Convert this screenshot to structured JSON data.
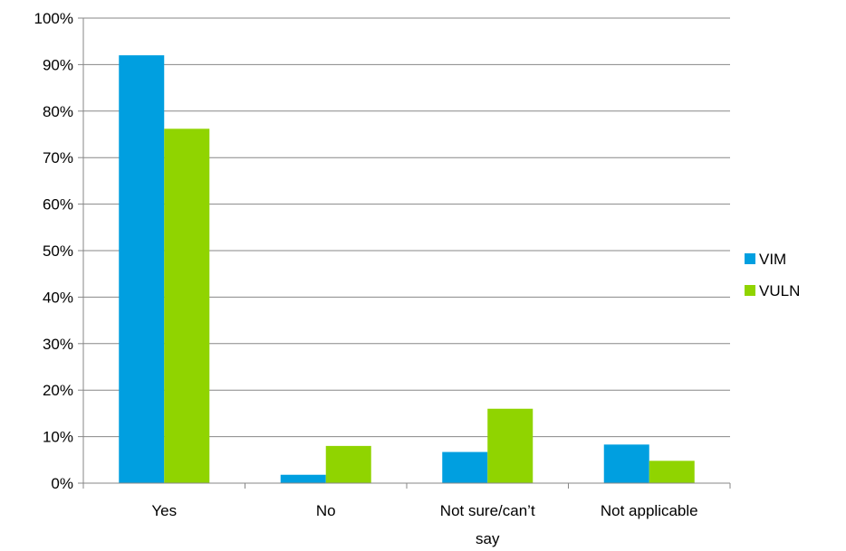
{
  "chart_data": {
    "type": "bar",
    "categories": [
      "Yes",
      "No",
      "Not sure/can’t say",
      "Not applicable"
    ],
    "category_lines": [
      [
        "Yes"
      ],
      [
        "No"
      ],
      [
        "Not sure/can’t",
        "say"
      ],
      [
        "Not applicable"
      ]
    ],
    "series": [
      {
        "name": "VIM",
        "values": [
          0.92,
          0.018,
          0.067,
          0.083
        ],
        "color": "#009fe0"
      },
      {
        "name": "VULN",
        "values": [
          0.762,
          0.08,
          0.16,
          0.048
        ],
        "color": "#90d400"
      }
    ],
    "ylim": [
      0,
      1
    ],
    "yticks": [
      0,
      0.1,
      0.2,
      0.3,
      0.4,
      0.5,
      0.6,
      0.7,
      0.8,
      0.9,
      1.0
    ],
    "ytick_labels": [
      "0%",
      "10%",
      "20%",
      "30%",
      "40%",
      "50%",
      "60%",
      "70%",
      "80%",
      "90%",
      "100%"
    ],
    "grid": true,
    "legend": "right",
    "title": "",
    "xlabel": "",
    "ylabel": ""
  }
}
